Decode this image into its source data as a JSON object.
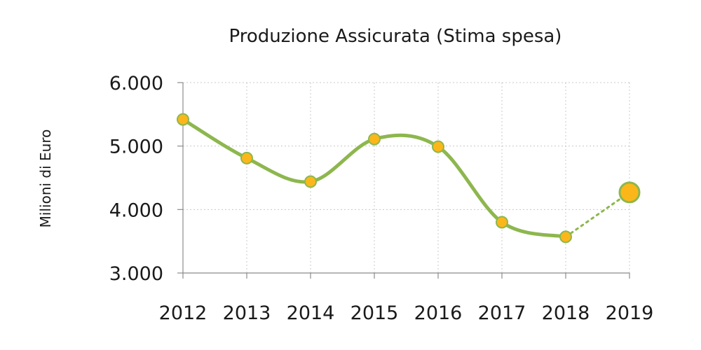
{
  "chart_data": {
    "type": "line",
    "title": "Produzione Assicurata (Stima spesa)",
    "ylabel": "Milioni di Euro",
    "xlabel": "",
    "ylim": [
      3000,
      6000
    ],
    "yticks": [
      3000,
      4000,
      5000,
      6000
    ],
    "ytick_labels": [
      "3.000",
      "4.000",
      "5.000",
      "6.000"
    ],
    "categories": [
      "2012",
      "2013",
      "2014",
      "2015",
      "2016",
      "2017",
      "2018",
      "2019"
    ],
    "series": [
      {
        "values": [
          5420,
          4810,
          4440,
          5110,
          4990,
          3800,
          3570,
          4270
        ],
        "line_color": "#8db74e",
        "marker_color": "#fbb71a",
        "estimate_last_point": true
      }
    ],
    "grid": true,
    "legend": "none"
  }
}
